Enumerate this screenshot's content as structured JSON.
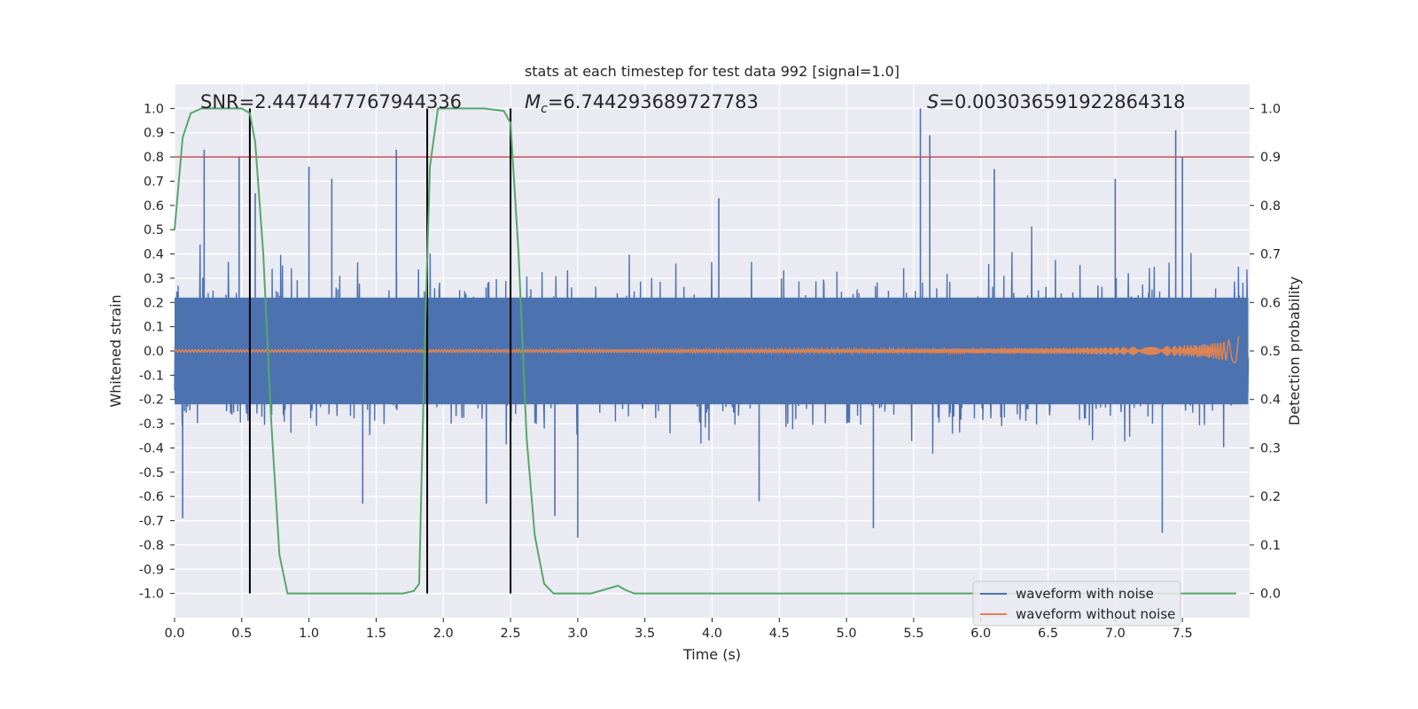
{
  "chart_data": {
    "type": "line",
    "title": "stats at each timestep for test data 992 [signal=1.0]",
    "xlabel": "Time (s)",
    "ylabel": "Whitened strain",
    "y2label": "Detection probability",
    "xlim": [
      0.0,
      8.0
    ],
    "ylim": [
      -1.1,
      1.1
    ],
    "y2lim": [
      -0.05,
      1.05
    ],
    "grid": true,
    "x_ticks": [
      "0.0",
      "0.5",
      "1.0",
      "1.5",
      "2.0",
      "2.5",
      "3.0",
      "3.5",
      "4.0",
      "4.5",
      "5.0",
      "5.5",
      "6.0",
      "6.5",
      "7.0",
      "7.5"
    ],
    "y_ticks": [
      "1.0",
      "0.9",
      "0.8",
      "0.7",
      "0.6",
      "0.5",
      "0.4",
      "0.3",
      "0.2",
      "0.1",
      "0.0",
      "-0.1",
      "-0.2",
      "-0.3",
      "-0.4",
      "-0.5",
      "-0.6",
      "-0.7",
      "-0.8",
      "-0.9",
      "-1.0"
    ],
    "y2_ticks": [
      "1.0",
      "0.9",
      "0.8",
      "0.7",
      "0.6",
      "0.5",
      "0.4",
      "0.3",
      "0.2",
      "0.1",
      "0.0"
    ],
    "annotations": {
      "snr": "SNR=2.4474477767944336",
      "mc_symbol": "M",
      "mc_sub": "c",
      "mc_value": "=6.744293689727783",
      "s_symbol": "S",
      "s_value": "=0.003036591922864318"
    },
    "legend": {
      "placement": "lower-right",
      "entries": [
        "waveform with noise",
        "waveform without noise"
      ]
    },
    "colors": {
      "noise": "#4c72b0",
      "clean": "#dd8452",
      "probability": "#55a868",
      "threshold": "#c44e52",
      "markers": "#000000",
      "background": "#eaeaf2",
      "grid": "#ffffff"
    },
    "threshold_probability": 0.9,
    "vertical_markers": [
      0.56,
      1.88,
      2.5
    ],
    "series": [
      {
        "name": "waveform with noise",
        "description_values": "dense noise, amplitude mostly within [-0.4, 0.4], peaks up to ±1.0",
        "peaks": [
          [
            0.06,
            -0.69
          ],
          [
            0.22,
            0.83
          ],
          [
            0.48,
            0.8
          ],
          [
            0.6,
            0.65
          ],
          [
            1.0,
            0.76
          ],
          [
            1.17,
            0.71
          ],
          [
            1.4,
            -0.63
          ],
          [
            1.65,
            0.83
          ],
          [
            2.32,
            -0.63
          ],
          [
            2.83,
            -0.68
          ],
          [
            3.0,
            -0.77
          ],
          [
            4.05,
            0.63
          ],
          [
            4.35,
            -0.62
          ],
          [
            5.2,
            -0.73
          ],
          [
            5.55,
            1.0
          ],
          [
            5.62,
            0.89
          ],
          [
            6.1,
            0.75
          ],
          [
            7.0,
            0.71
          ],
          [
            7.45,
            0.91
          ],
          [
            7.5,
            0.8
          ],
          [
            7.35,
            -0.75
          ]
        ]
      },
      {
        "name": "waveform without noise",
        "description_values": "chirp, amplitude ~0.005 rising to ~0.09 at t=7.92"
      },
      {
        "name": "detection probability",
        "axis": "right",
        "x": [
          0.0,
          0.06,
          0.12,
          0.2,
          0.3,
          0.4,
          0.5,
          0.56,
          0.6,
          0.66,
          0.72,
          0.78,
          0.84,
          1.0,
          1.5,
          1.7,
          1.78,
          1.82,
          1.86,
          1.9,
          1.96,
          2.1,
          2.3,
          2.45,
          2.5,
          2.56,
          2.62,
          2.68,
          2.75,
          2.82,
          2.9,
          3.0,
          3.1,
          3.2,
          3.3,
          3.35,
          3.42,
          3.6,
          4.0,
          5.0,
          6.0,
          7.0,
          7.9
        ],
        "values": [
          0.75,
          0.94,
          0.99,
          1.0,
          1.0,
          1.0,
          1.0,
          0.99,
          0.93,
          0.7,
          0.35,
          0.08,
          0.0,
          0.0,
          0.0,
          0.0,
          0.005,
          0.02,
          0.5,
          0.88,
          1.0,
          1.0,
          1.0,
          0.995,
          0.97,
          0.7,
          0.32,
          0.12,
          0.02,
          0.0,
          0.0,
          0.0,
          0.0,
          0.008,
          0.016,
          0.008,
          0.0,
          0.0,
          0.0,
          0.0,
          0.0,
          0.0,
          0.0
        ]
      }
    ]
  }
}
